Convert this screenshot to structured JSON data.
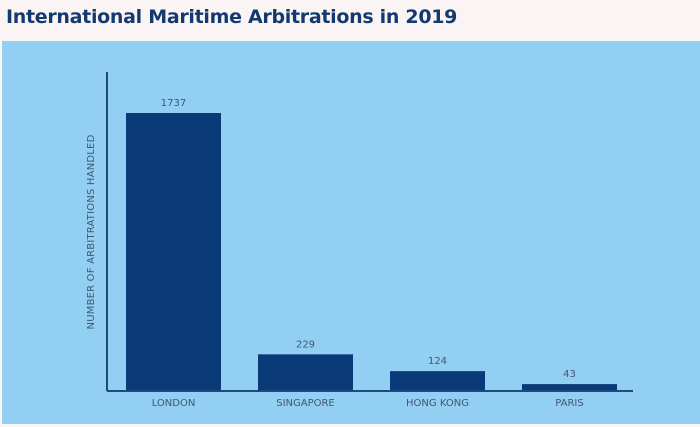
{
  "title": "International Maritime Arbitrations in 2019",
  "colors": {
    "background": "#faf5f4",
    "panel": "#93cff2",
    "bar": "#0b3a78",
    "axis": "#1e4a80",
    "title": "#123a6e",
    "label": "#3f5872"
  },
  "chart_data": {
    "type": "bar",
    "title": "International Maritime Arbitrations in 2019",
    "xlabel": "",
    "ylabel": "NUMBER OF ARBITRATIONS HANDLED",
    "categories": [
      "LONDON",
      "SINGAPORE",
      "HONG KONG",
      "PARIS"
    ],
    "values": [
      1737,
      229,
      124,
      43
    ],
    "data_labels": [
      "1737",
      "229",
      "124",
      "43"
    ],
    "ylim": [
      0,
      2000
    ],
    "grid": false,
    "legend": "none"
  }
}
